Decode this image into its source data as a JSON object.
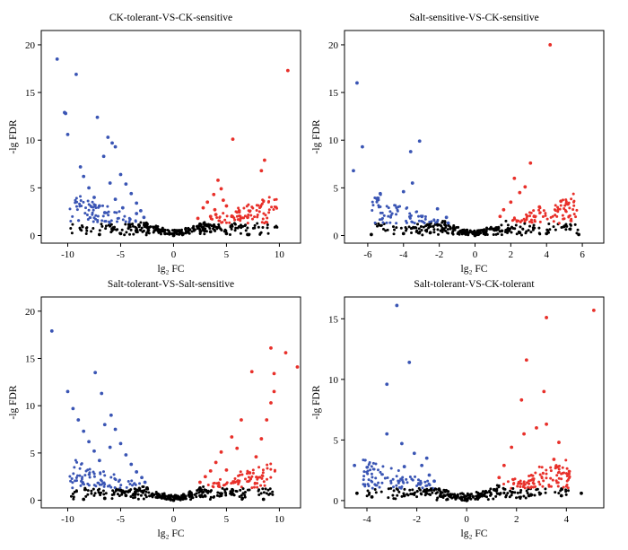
{
  "chart_data": [
    {
      "type": "scatter",
      "title": "CK-tolerant-VS-CK-sensitive",
      "xlabel": "lg₂ FC",
      "ylabel": "-lg FDR",
      "xlim": [
        -12.5,
        12
      ],
      "ylim": [
        -0.8,
        21.5
      ],
      "xticks": [
        -10,
        -5,
        0,
        5,
        10
      ],
      "yticks": [
        0,
        5,
        10,
        15,
        20
      ],
      "grid": false,
      "legend": "none",
      "colors": {
        "down": "#3a55b4",
        "up": "#e8302a",
        "ns": "#000000"
      },
      "series": [
        {
          "values": [
            [
              -11,
              18.5
            ],
            [
              -10.3,
              12.9
            ],
            [
              -10.2,
              12.8
            ],
            [
              -9.2,
              16.9
            ],
            [
              -10,
              10.6
            ],
            [
              -7.2,
              12.4
            ],
            [
              -6.2,
              10.3
            ],
            [
              -5.8,
              9.7
            ],
            [
              -5.5,
              9.3
            ],
            [
              -6.6,
              8.3
            ],
            [
              -8.8,
              7.2
            ],
            [
              -8.5,
              6.2
            ],
            [
              -8,
              5.0
            ],
            [
              -7.5,
              4.0
            ],
            [
              -7,
              3.1
            ],
            [
              -6.5,
              2.4
            ],
            [
              -5,
              6.4
            ],
            [
              -4.5,
              5.4
            ],
            [
              -4,
              4.4
            ],
            [
              -3.5,
              3.4
            ],
            [
              -3.1,
              2.6
            ],
            [
              -2.8,
              1.9
            ],
            [
              -6,
              5.5
            ],
            [
              -5.5,
              3.8
            ],
            [
              -4.8,
              2.9
            ],
            [
              -3.5,
              2.3
            ]
          ]
        },
        {
          "values": [
            [
              10.8,
              17.3
            ],
            [
              5.6,
              10.1
            ],
            [
              8.6,
              7.9
            ],
            [
              8.3,
              6.8
            ],
            [
              4.2,
              5.8
            ],
            [
              4.5,
              4.9
            ],
            [
              3.8,
              4.3
            ],
            [
              3.2,
              3.5
            ],
            [
              2.8,
              2.9
            ],
            [
              5,
              3.1
            ],
            [
              6.2,
              2.6
            ],
            [
              4,
              2.2
            ],
            [
              3.5,
              2.0
            ],
            [
              2.3,
              1.8
            ],
            [
              5.5,
              2.0
            ],
            [
              7,
              1.9
            ],
            [
              4.7,
              3.7
            ],
            [
              3.9,
              2.7
            ]
          ]
        },
        {
          "values": [
            [
              -2.5,
              1.2
            ],
            [
              -1.5,
              0.6
            ],
            [
              -0.8,
              0.2
            ],
            [
              0,
              0
            ],
            [
              0.8,
              0.2
            ],
            [
              1.5,
              0.6
            ],
            [
              2.5,
              1.2
            ],
            [
              -3.5,
              0.4
            ],
            [
              3.5,
              0.4
            ],
            [
              -5,
              0.2
            ],
            [
              5,
              0.2
            ],
            [
              -7,
              0.1
            ],
            [
              7,
              0.1
            ]
          ]
        }
      ]
    },
    {
      "type": "scatter",
      "title": "Salt-sensitive-VS-CK-sensitive",
      "xlabel": "lg₂ FC",
      "ylabel": "-lg FDR",
      "xlim": [
        -7.3,
        7.2
      ],
      "ylim": [
        -0.8,
        21.5
      ],
      "xticks": [
        -6,
        -4,
        -2,
        0,
        2,
        4,
        6
      ],
      "yticks": [
        0,
        5,
        10,
        15,
        20
      ],
      "grid": false,
      "legend": "none",
      "colors": {
        "down": "#3a55b4",
        "up": "#e8302a",
        "ns": "#000000"
      },
      "series": [
        {
          "values": [
            [
              -6.6,
              16
            ],
            [
              -6.3,
              9.3
            ],
            [
              -6.8,
              6.8
            ],
            [
              -3.1,
              9.9
            ],
            [
              -3.6,
              8.8
            ],
            [
              -3.5,
              5.5
            ],
            [
              -5.3,
              4.4
            ],
            [
              -4,
              4.6
            ],
            [
              -2.1,
              2.8
            ],
            [
              -1.6,
              1.9
            ],
            [
              -1.5,
              1.3
            ]
          ]
        },
        {
          "values": [
            [
              4.2,
              20
            ],
            [
              3.1,
              7.6
            ],
            [
              2.2,
              6.0
            ],
            [
              2.8,
              5.1
            ],
            [
              4.8,
              3.6
            ],
            [
              2,
              3.5
            ],
            [
              1.6,
              2.7
            ],
            [
              1.4,
              2.0
            ],
            [
              5.2,
              3.3
            ],
            [
              2.5,
              4.5
            ],
            [
              3.6,
              3.0
            ]
          ]
        },
        {
          "values": [
            [
              -1.2,
              0.8
            ],
            [
              -0.6,
              0.3
            ],
            [
              0,
              0
            ],
            [
              0.6,
              0.3
            ],
            [
              1.2,
              0.8
            ],
            [
              -2.5,
              0.3
            ],
            [
              2.5,
              0.3
            ],
            [
              -4,
              0.2
            ],
            [
              4,
              0.2
            ],
            [
              -5.8,
              0.1
            ],
            [
              5.8,
              0.1
            ]
          ]
        }
      ]
    },
    {
      "type": "scatter",
      "title": "Salt-tolerant-VS-Salt-sensitive",
      "xlabel": "lg₂ FC",
      "ylabel": "-lg FDR",
      "xlim": [
        -12.5,
        12
      ],
      "ylim": [
        -0.8,
        21.5
      ],
      "xticks": [
        -10,
        -5,
        0,
        5,
        10
      ],
      "yticks": [
        0,
        5,
        10,
        15,
        20
      ],
      "grid": false,
      "legend": "none",
      "colors": {
        "down": "#3a55b4",
        "up": "#e8302a",
        "ns": "#000000"
      },
      "series": [
        {
          "values": [
            [
              -11.5,
              17.9
            ],
            [
              -10,
              11.5
            ],
            [
              -9.5,
              9.7
            ],
            [
              -9,
              8.5
            ],
            [
              -8.5,
              7.3
            ],
            [
              -8,
              6.2
            ],
            [
              -7.5,
              5.2
            ],
            [
              -7,
              4.2
            ],
            [
              -7.4,
              13.5
            ],
            [
              -6.8,
              11.3
            ],
            [
              -5.9,
              9.0
            ],
            [
              -5.5,
              7.5
            ],
            [
              -5,
              6.0
            ],
            [
              -4.5,
              4.8
            ],
            [
              -4,
              3.8
            ],
            [
              -3.5,
              3.0
            ],
            [
              -3,
              2.4
            ],
            [
              -2.7,
              1.9
            ],
            [
              -6.5,
              8.0
            ],
            [
              -6,
              5.6
            ]
          ]
        },
        {
          "values": [
            [
              11.7,
              14.1
            ],
            [
              9.2,
              16.1
            ],
            [
              10.6,
              15.6
            ],
            [
              9.5,
              13.4
            ],
            [
              9.5,
              11.5
            ],
            [
              9.2,
              10.3
            ],
            [
              8.8,
              8.5
            ],
            [
              8.3,
              6.5
            ],
            [
              7.8,
              4.6
            ],
            [
              7.2,
              2.9
            ],
            [
              7.4,
              13.6
            ],
            [
              6.4,
              8.5
            ],
            [
              5.5,
              6.7
            ],
            [
              4.5,
              5.1
            ],
            [
              4,
              4.0
            ],
            [
              3.5,
              3.1
            ],
            [
              3,
              2.5
            ],
            [
              2.5,
              1.9
            ],
            [
              6,
              5.5
            ],
            [
              5,
              3.2
            ]
          ]
        },
        {
          "values": [
            [
              -2.5,
              1.3
            ],
            [
              -1.5,
              0.6
            ],
            [
              -0.8,
              0.2
            ],
            [
              0,
              0
            ],
            [
              0.8,
              0.2
            ],
            [
              1.5,
              0.6
            ],
            [
              2.5,
              1.3
            ],
            [
              -4.5,
              0.5
            ],
            [
              4.5,
              0.5
            ],
            [
              -6.5,
              0.2
            ],
            [
              6.5,
              0.2
            ],
            [
              -8.5,
              0.1
            ],
            [
              8.5,
              0.1
            ]
          ]
        }
      ]
    },
    {
      "type": "scatter",
      "title": "Salt-tolerant-VS-CK-tolerant",
      "xlabel": "lg₂ FC",
      "ylabel": "-lg FDR",
      "xlim": [
        -4.9,
        5.5
      ],
      "ylim": [
        -0.6,
        16.8
      ],
      "xticks": [
        -4,
        -2,
        0,
        2,
        4
      ],
      "yticks": [
        0,
        5,
        10,
        15
      ],
      "grid": false,
      "legend": "none",
      "colors": {
        "down": "#3a55b4",
        "up": "#e8302a",
        "ns": "#000000"
      },
      "series": [
        {
          "values": [
            [
              -2.8,
              16.1
            ],
            [
              -2.3,
              11.4
            ],
            [
              -3.2,
              9.6
            ],
            [
              -4.5,
              2.9
            ],
            [
              -3.2,
              5.5
            ],
            [
              -2.6,
              4.7
            ],
            [
              -2.1,
              3.9
            ],
            [
              -1.8,
              2.9
            ],
            [
              -1.5,
              2.1
            ],
            [
              -1.3,
              1.6
            ],
            [
              -2.5,
              2.8
            ],
            [
              -1.6,
              3.5
            ]
          ]
        },
        {
          "values": [
            [
              5.1,
              15.7
            ],
            [
              3.2,
              15.1
            ],
            [
              2.4,
              11.6
            ],
            [
              3.1,
              9.0
            ],
            [
              2.2,
              8.3
            ],
            [
              3.2,
              6.3
            ],
            [
              2.8,
              6.0
            ],
            [
              1.8,
              4.4
            ],
            [
              1.5,
              2.9
            ],
            [
              1.3,
              1.9
            ],
            [
              3.7,
              4.8
            ],
            [
              4.1,
              2.2
            ],
            [
              2.3,
              5.5
            ],
            [
              3.5,
              3.4
            ]
          ]
        },
        {
          "values": [
            [
              -1.1,
              0.9
            ],
            [
              -0.5,
              0.3
            ],
            [
              0,
              0
            ],
            [
              0.5,
              0.3
            ],
            [
              1.1,
              0.9
            ],
            [
              -2.5,
              0.4
            ],
            [
              2.5,
              0.4
            ],
            [
              -3.8,
              0.3
            ],
            [
              3.8,
              0.4
            ],
            [
              4.6,
              0.6
            ],
            [
              -4.4,
              0.6
            ]
          ]
        }
      ]
    }
  ]
}
